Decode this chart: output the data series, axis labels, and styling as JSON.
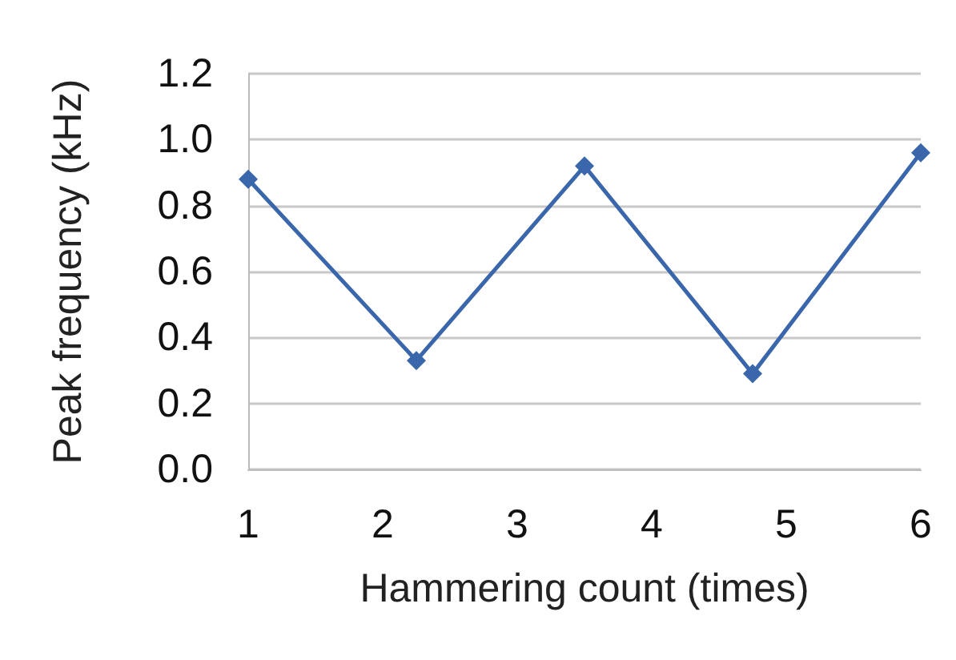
{
  "chart_data": {
    "type": "line",
    "xlabel": "Hammering count (times)",
    "ylabel": "Peak frequency (kHz)",
    "x": [
      1,
      2.25,
      3.5,
      4.75,
      6
    ],
    "series": [
      {
        "color": "#3a66ab",
        "values": [
          0.88,
          0.33,
          0.92,
          0.29,
          0.96
        ]
      }
    ],
    "xlim": [
      1,
      6
    ],
    "xticks": [
      1,
      2,
      3,
      4,
      5,
      6
    ],
    "ylim": [
      0,
      1.2
    ],
    "yticks": [
      {
        "value": 0,
        "label": "0.0"
      },
      0.2,
      0.4,
      0.6,
      0.8,
      {
        "value": 1,
        "label": "1.0"
      },
      1.2
    ],
    "grid": "y",
    "marker": "diamond",
    "line_style": "solid"
  }
}
